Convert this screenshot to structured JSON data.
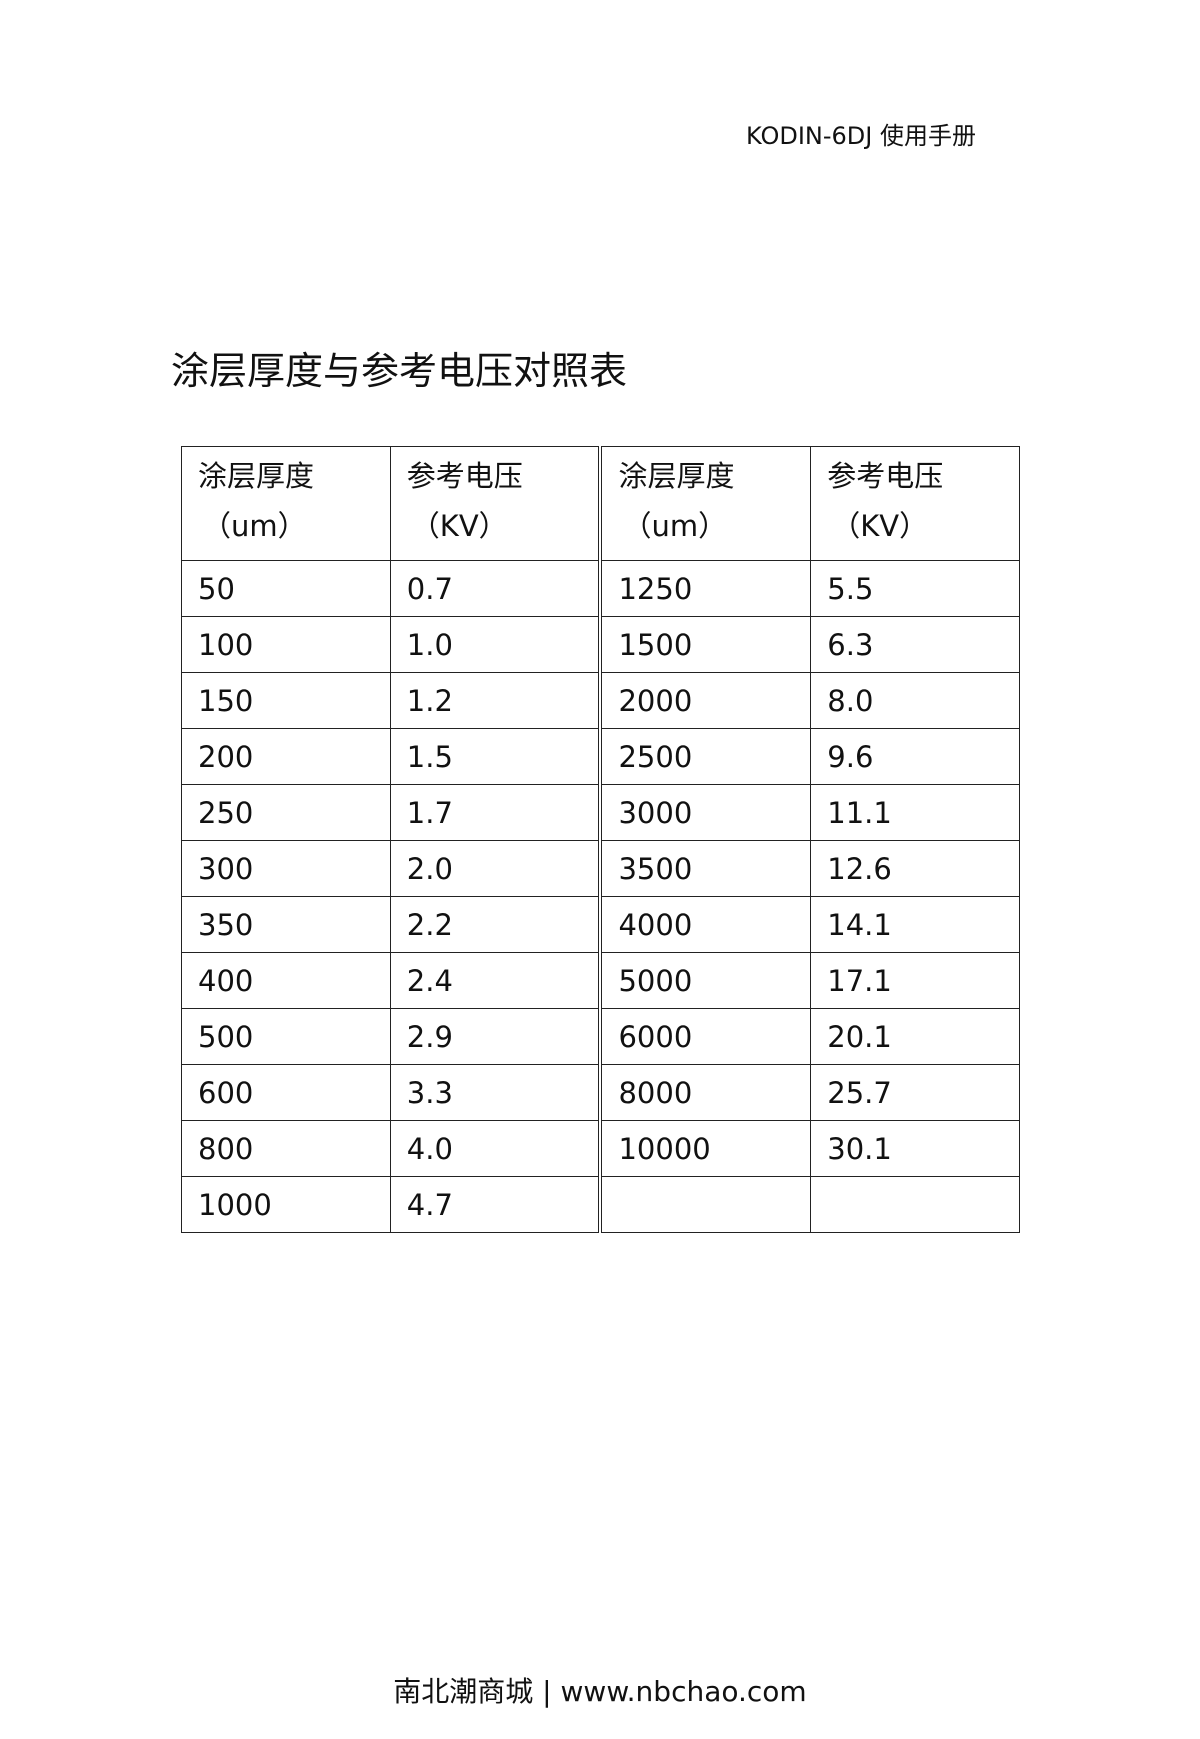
{
  "header": {
    "text": "KODIN-6DJ 使用手册"
  },
  "title": "涂层厚度与参考电压对照表",
  "table": {
    "headers": [
      {
        "label": "涂层厚度",
        "unit": "（um）"
      },
      {
        "label": "参考电压",
        "unit": "（KV）"
      },
      {
        "label": "涂层厚度",
        "unit": "（um）"
      },
      {
        "label": "参考电压",
        "unit": "（KV）"
      }
    ],
    "rows": [
      [
        "50",
        "0.7",
        "1250",
        "5.5"
      ],
      [
        "100",
        "1.0",
        "1500",
        "6.3"
      ],
      [
        "150",
        "1.2",
        "2000",
        "8.0"
      ],
      [
        "200",
        "1.5",
        "2500",
        "9.6"
      ],
      [
        "250",
        "1.7",
        "3000",
        "11.1"
      ],
      [
        "300",
        "2.0",
        "3500",
        "12.6"
      ],
      [
        "350",
        "2.2",
        "4000",
        "14.1"
      ],
      [
        "400",
        "2.4",
        "5000",
        "17.1"
      ],
      [
        "500",
        "2.9",
        "6000",
        "20.1"
      ],
      [
        "600",
        "3.3",
        "8000",
        "25.7"
      ],
      [
        "800",
        "4.0",
        "10000",
        "30.1"
      ],
      [
        "1000",
        "4.7",
        "",
        ""
      ]
    ]
  },
  "footer": {
    "text": "南北潮商城 | www.nbchao.com"
  }
}
